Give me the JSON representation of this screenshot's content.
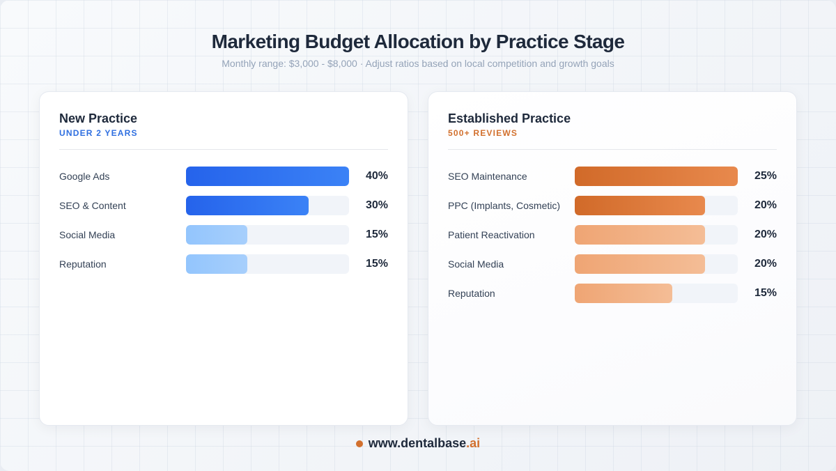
{
  "header": {
    "title": "Marketing Budget Allocation by Practice Stage",
    "subtitle": "Monthly range: $3,000 - $8,000 · Adjust ratios based on local competition and growth goals"
  },
  "cards": [
    {
      "title": "New Practice",
      "tag": "UNDER 2 YEARS",
      "accent": "#2f6fe0",
      "rows": [
        {
          "label": "Google Ads",
          "value": "40%",
          "width": "100%",
          "style": "blue-strong"
        },
        {
          "label": "SEO & Content",
          "value": "30%",
          "width": "75%",
          "style": "blue-strong"
        },
        {
          "label": "Social Media",
          "value": "15%",
          "width": "37.5%",
          "style": "blue-light"
        },
        {
          "label": "Reputation",
          "value": "15%",
          "width": "37.5%",
          "style": "blue-light"
        }
      ]
    },
    {
      "title": "Established Practice",
      "tag": "500+ REVIEWS",
      "accent": "#d2702e",
      "rows": [
        {
          "label": "SEO Maintenance",
          "value": "25%",
          "width": "100%",
          "style": "orange-strong"
        },
        {
          "label": "PPC (Implants, Cosmetic)",
          "value": "20%",
          "width": "80%",
          "style": "orange-strong"
        },
        {
          "label": "Patient Reactivation",
          "value": "20%",
          "width": "80%",
          "style": "orange-light"
        },
        {
          "label": "Social Media",
          "value": "20%",
          "width": "80%",
          "style": "orange-light"
        },
        {
          "label": "Reputation",
          "value": "15%",
          "width": "60%",
          "style": "orange-light"
        }
      ]
    }
  ],
  "footer": {
    "site_main": "www.dentalbase",
    "site_tld": ".ai"
  },
  "colors": {
    "blue_strong": "#2563eb",
    "blue_light": "#93c5fd",
    "orange_strong": "#d16a29",
    "orange_light": "#efa574",
    "track": "#f1f4f9"
  },
  "chart_data": [
    {
      "type": "bar",
      "orientation": "horizontal",
      "title": "New Practice",
      "subtitle": "UNDER 2 YEARS",
      "categories": [
        "Google Ads",
        "SEO & Content",
        "Social Media",
        "Reputation"
      ],
      "values": [
        40,
        30,
        15,
        15
      ],
      "unit": "%",
      "scale_max": 40
    },
    {
      "type": "bar",
      "orientation": "horizontal",
      "title": "Established Practice",
      "subtitle": "500+ REVIEWS",
      "categories": [
        "SEO Maintenance",
        "PPC (Implants, Cosmetic)",
        "Patient Reactivation",
        "Social Media",
        "Reputation"
      ],
      "values": [
        25,
        20,
        20,
        20,
        15
      ],
      "unit": "%",
      "scale_max": 25
    }
  ]
}
